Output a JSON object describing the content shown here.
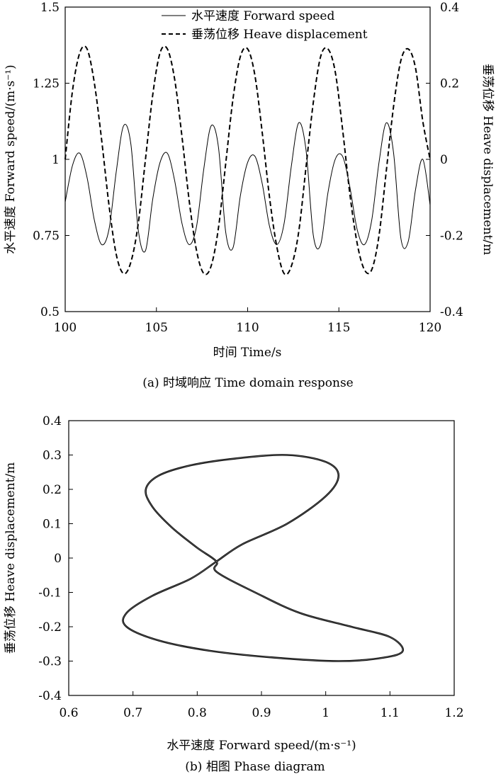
{
  "chart_data": [
    {
      "type": "line",
      "caption": "(a) 时域响应 Time domain response",
      "xlabel": "时间 Time/s",
      "ylabel_left": "水平速度 Forward speed/(m·s⁻¹)",
      "ylabel_right": "垂荡位移 Heave displacement/m",
      "xlim": [
        100,
        120
      ],
      "ylim_left": [
        0.5,
        1.5
      ],
      "ylim_right": [
        -0.4,
        0.4
      ],
      "x_ticks": [
        "100",
        "105",
        "110",
        "115",
        "120"
      ],
      "y_ticks_left": [
        "0.5",
        "0.75",
        "1",
        "1.25",
        "1.5"
      ],
      "y_ticks_right": [
        "-0.4",
        "-0.2",
        "0",
        "0.2",
        "0.4"
      ],
      "legend_placement": "top-center",
      "grid": false,
      "series": [
        {
          "name": "水平速度 Forward speed",
          "axis": "left",
          "style": "solid",
          "x": [
            100.0,
            100.4,
            100.8,
            101.2,
            101.6,
            102.0,
            102.4,
            102.8,
            103.2,
            103.6,
            104.0,
            104.4,
            104.8,
            105.2,
            105.6,
            106.0,
            106.4,
            106.8,
            107.2,
            107.6,
            108.0,
            108.4,
            108.8,
            109.2,
            109.6,
            110.0,
            110.4,
            110.8,
            111.2,
            111.6,
            112.0,
            112.4,
            112.8,
            113.2,
            113.6,
            114.0,
            114.4,
            114.8,
            115.2,
            115.6,
            116.0,
            116.4,
            116.8,
            117.2,
            117.6,
            118.0,
            118.4,
            118.8,
            119.2,
            119.6,
            120.0
          ],
          "y": [
            0.86,
            0.98,
            1.02,
            0.94,
            0.8,
            0.72,
            0.77,
            0.96,
            1.11,
            1.05,
            0.77,
            0.7,
            0.87,
            0.99,
            1.02,
            0.93,
            0.79,
            0.72,
            0.78,
            0.97,
            1.11,
            1.04,
            0.76,
            0.71,
            0.88,
            0.99,
            1.01,
            0.92,
            0.78,
            0.72,
            0.79,
            0.98,
            1.12,
            1.03,
            0.75,
            0.72,
            0.89,
            1.0,
            1.01,
            0.91,
            0.77,
            0.72,
            0.8,
            0.99,
            1.12,
            1.02,
            0.74,
            0.73,
            0.9,
            1.0,
            0.85
          ]
        },
        {
          "name": "垂荡位移 Heave displacement",
          "axis": "right",
          "style": "dashed",
          "x": [
            100.0,
            100.4,
            100.8,
            101.2,
            101.6,
            102.0,
            102.4,
            102.8,
            103.2,
            103.6,
            104.0,
            104.4,
            104.8,
            105.2,
            105.6,
            106.0,
            106.4,
            106.8,
            107.2,
            107.6,
            108.0,
            108.4,
            108.8,
            109.2,
            109.6,
            110.0,
            110.4,
            110.8,
            111.2,
            111.6,
            112.0,
            112.4,
            112.8,
            113.2,
            113.6,
            114.0,
            114.4,
            114.8,
            115.2,
            115.6,
            116.0,
            116.4,
            116.8,
            117.2,
            117.6,
            118.0,
            118.4,
            118.8,
            119.2,
            119.6,
            120.0
          ],
          "y": [
            0.0,
            0.18,
            0.28,
            0.29,
            0.2,
            0.05,
            -0.12,
            -0.25,
            -0.3,
            -0.27,
            -0.17,
            0.0,
            0.17,
            0.28,
            0.29,
            0.21,
            0.06,
            -0.11,
            -0.24,
            -0.3,
            -0.28,
            -0.18,
            -0.01,
            0.16,
            0.27,
            0.29,
            0.22,
            0.07,
            -0.1,
            -0.23,
            -0.3,
            -0.28,
            -0.19,
            -0.02,
            0.15,
            0.27,
            0.29,
            0.23,
            0.08,
            -0.09,
            -0.22,
            -0.29,
            -0.29,
            -0.2,
            -0.03,
            0.14,
            0.26,
            0.29,
            0.24,
            0.1,
            0.0
          ]
        }
      ]
    },
    {
      "type": "line",
      "caption": "(b) 相图 Phase diagram",
      "xlabel": "水平速度 Forward speed/(m·s⁻¹)",
      "ylabel": "垂荡位移 Heave displacement/m",
      "xlim": [
        0.6,
        1.2
      ],
      "ylim": [
        -0.4,
        0.4
      ],
      "x_ticks": [
        "0.6",
        "0.7",
        "0.8",
        "0.9",
        "1",
        "1.1",
        "1.2"
      ],
      "y_ticks": [
        "0.4",
        "0.3",
        "0.2",
        "0.1",
        "0",
        "-0.1",
        "-0.2",
        "-0.3",
        "-0.4"
      ],
      "grid": false,
      "series": [
        {
          "style": "solid",
          "x": [
            0.83,
            0.8,
            0.76,
            0.73,
            0.72,
            0.74,
            0.79,
            0.86,
            0.94,
            1.0,
            1.02,
            1.0,
            0.94,
            0.87,
            0.83,
            0.79,
            0.73,
            0.69,
            0.69,
            0.74,
            0.82,
            0.92,
            1.02,
            1.09,
            1.12,
            1.1,
            1.04,
            0.96,
            0.89,
            0.83
          ],
          "y": [
            -0.01,
            0.03,
            0.09,
            0.15,
            0.2,
            0.24,
            0.27,
            0.29,
            0.3,
            0.28,
            0.24,
            0.18,
            0.1,
            0.04,
            -0.01,
            -0.06,
            -0.11,
            -0.16,
            -0.2,
            -0.24,
            -0.27,
            -0.29,
            -0.3,
            -0.29,
            -0.27,
            -0.23,
            -0.2,
            -0.16,
            -0.1,
            -0.04
          ]
        }
      ]
    }
  ]
}
